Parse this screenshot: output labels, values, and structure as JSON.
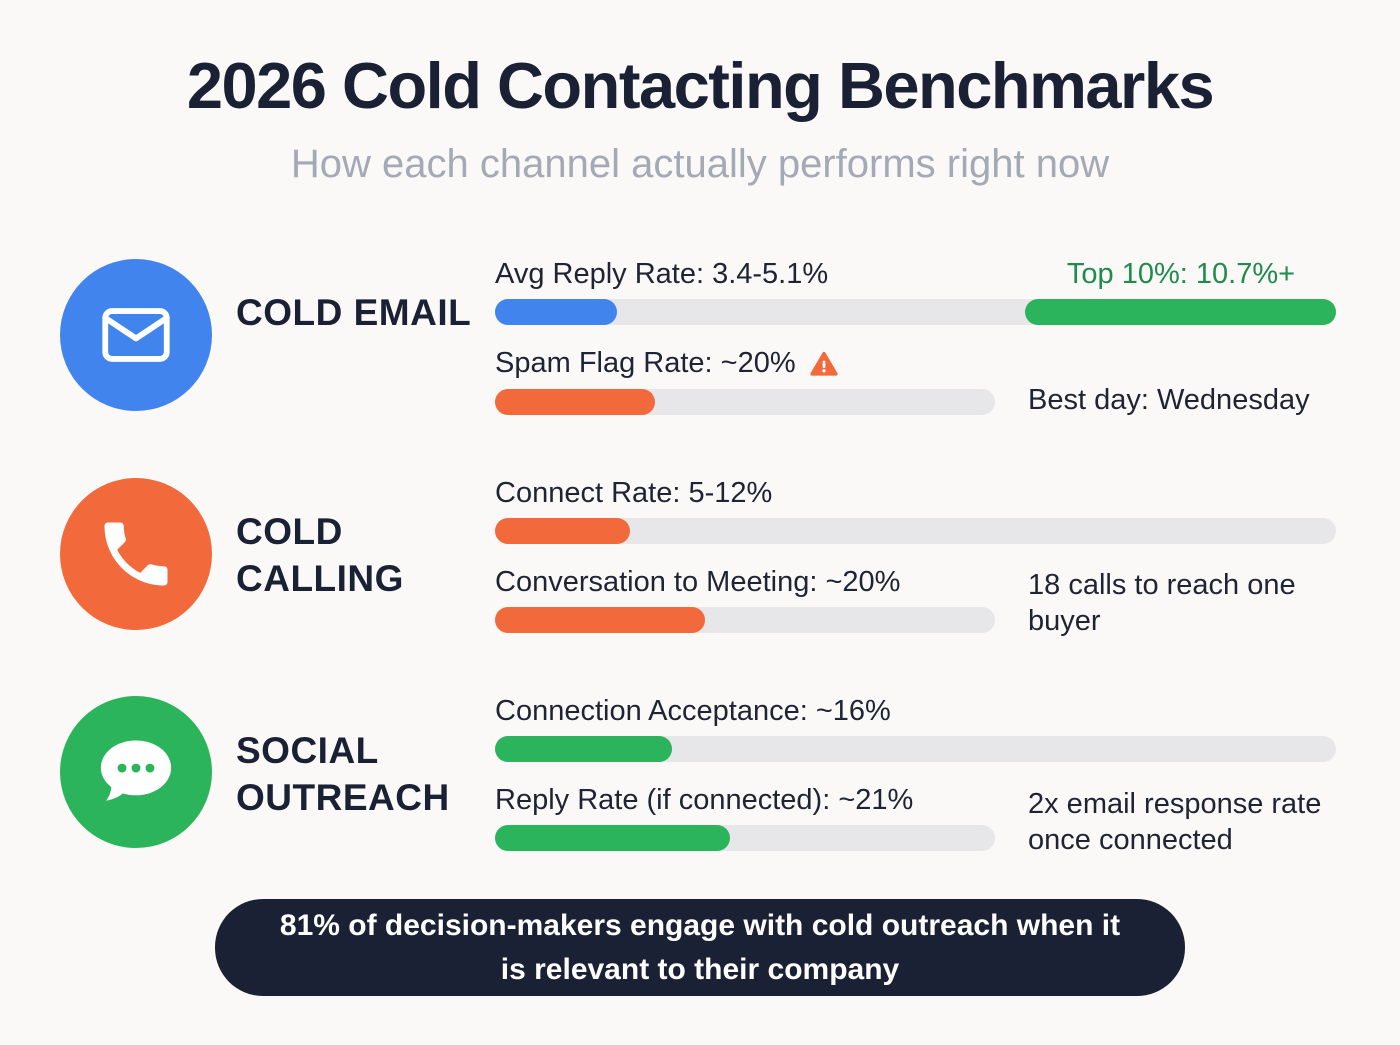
{
  "page": {
    "title": "2026 Cold Contacting Benchmarks",
    "subtitle": "How each channel actually performs right now",
    "footer_banner": "81% of decision-makers engage with cold outreach when it is relevant to their company"
  },
  "colors": {
    "email_blue": "#4184EE",
    "calling_orange": "#F26A3B",
    "social_green": "#2BB45C",
    "top10_green_text": "#1F8B4D",
    "navy": "#1B2135",
    "bar_track": "#E7E6E9",
    "background": "#FAF9F7",
    "subtitle_gray": "#A3A9B5"
  },
  "chart_data": {
    "type": "bar",
    "title": "2026 Cold Contacting Benchmarks",
    "subtitle": "How each channel actually performs right now",
    "annotation": "81% of decision-makers engage with cold outreach when it is relevant to their company",
    "channels": [
      {
        "label": "COLD EMAIL",
        "icon": "envelope-icon",
        "color": "#4184EE",
        "metric1": {
          "label": "Avg Reply Rate: 3.4-5.1%",
          "value_range_pct": [
            3.4,
            5.1
          ],
          "bar_fill_pct": 14.5,
          "top_label": "Top 10%: 10.7%+",
          "top_value_pct": 10.7,
          "top_segment_pct": 37
        },
        "metric2": {
          "label": "Spam Flag Rate: ~20%",
          "value_pct": 20,
          "bar_fill_pct": 32,
          "warning": true
        },
        "note": "Best day: Wednesday"
      },
      {
        "label": "COLD CALLING",
        "icon": "phone-icon",
        "color": "#F26A3B",
        "metric1": {
          "label": "Connect Rate: 5-12%",
          "value_range_pct": [
            5,
            12
          ],
          "bar_fill_pct": 16
        },
        "metric2": {
          "label": "Conversation to Meeting: ~20%",
          "value_pct": 20,
          "bar_fill_pct": 42
        },
        "note": "18 calls to reach one buyer"
      },
      {
        "label": "SOCIAL OUTREACH",
        "icon": "chat-bubble-icon",
        "color": "#2BB45C",
        "metric1": {
          "label": "Connection Acceptance: ~16%",
          "value_pct": 16,
          "bar_fill_pct": 21
        },
        "metric2": {
          "label": "Reply Rate (if connected): ~21%",
          "value_pct": 21,
          "bar_fill_pct": 47
        },
        "note": "2x email response rate once connected"
      }
    ]
  }
}
